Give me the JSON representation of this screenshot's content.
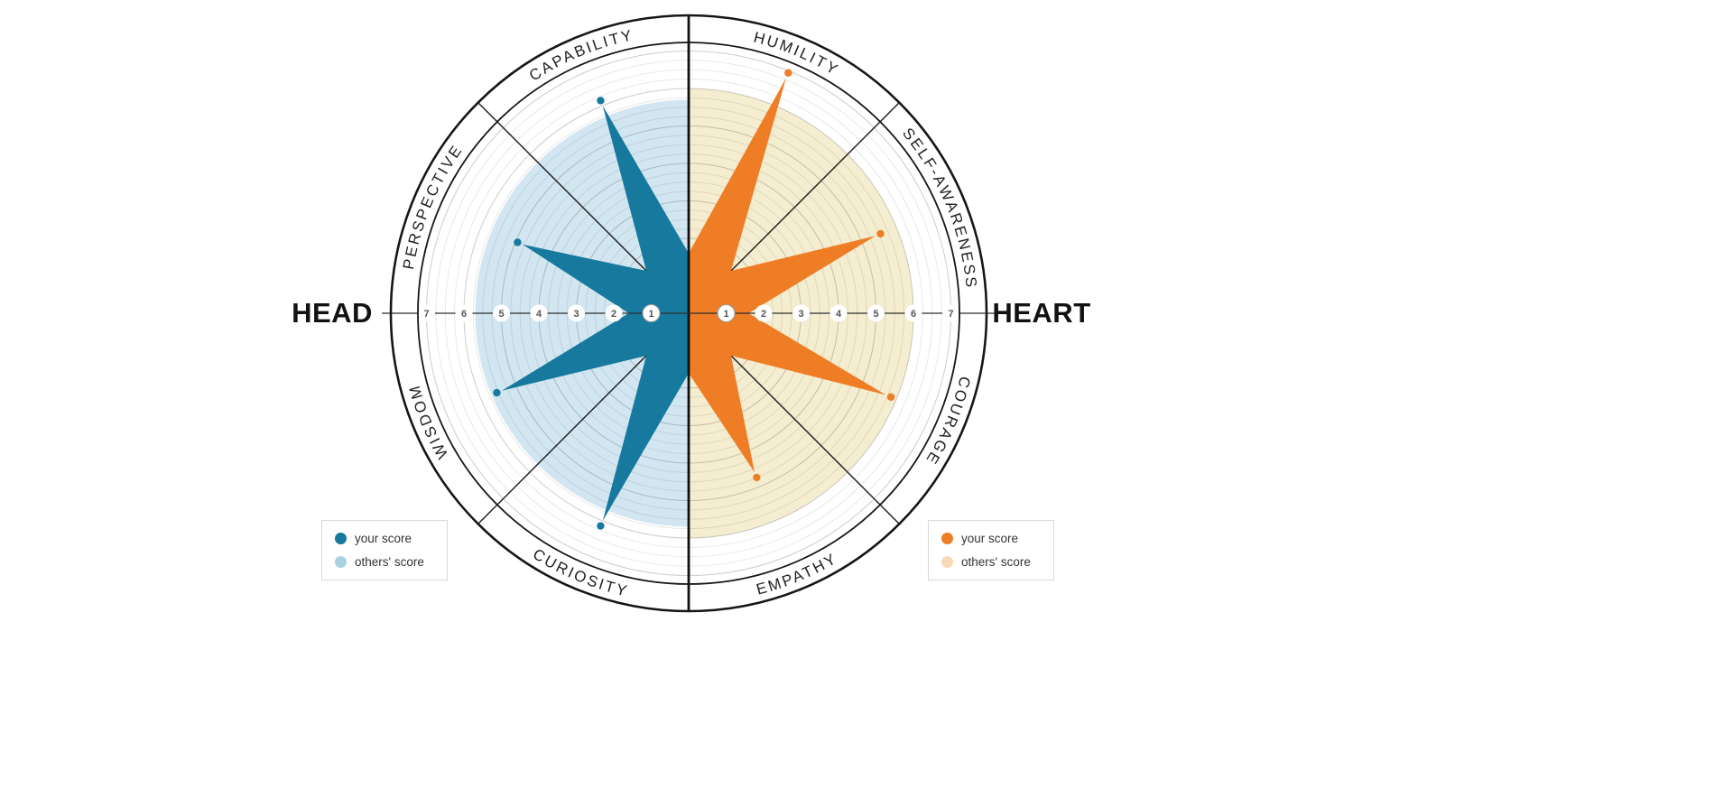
{
  "side_titles": {
    "left": "HEAD",
    "right": "HEART"
  },
  "chart_data": {
    "type": "radar-star",
    "title": "",
    "scale": {
      "min": 0,
      "max": 7,
      "ticks": [
        "1",
        "2",
        "3",
        "4",
        "5",
        "6",
        "7"
      ],
      "valley_radius": 1.6
    },
    "halves": [
      {
        "side": "left",
        "title": "HEAD",
        "your_color": "#17799e",
        "others_area_color": "#d2e6f1",
        "others_dot_color": "#a9d1e4",
        "others_score": 5.7,
        "traits": [
          {
            "label": "CAPABILITY",
            "your_score": 6.0
          },
          {
            "label": "PERSPECTIVE",
            "your_score": 4.8
          },
          {
            "label": "WISDOM",
            "your_score": 5.4
          },
          {
            "label": "CURIOSITY",
            "your_score": 6.0
          }
        ],
        "legend": {
          "your_label": "your score",
          "others_label": "others' score"
        }
      },
      {
        "side": "right",
        "title": "HEART",
        "your_color": "#ef7d26",
        "others_area_color": "#f5edd0",
        "others_dot_color": "#f9d9b5",
        "others_score": 6.0,
        "traits": [
          {
            "label": "HUMILITY",
            "your_score": 6.8
          },
          {
            "label": "SELF-AWARENESS",
            "your_score": 5.4
          },
          {
            "label": "COURAGE",
            "your_score": 5.7
          },
          {
            "label": "EMPATHY",
            "your_score": 4.6
          }
        ],
        "legend": {
          "your_label": "your score",
          "others_label": "others' score"
        }
      }
    ],
    "style": {
      "grid_minor_color": "rgba(0,0,0,0.09)",
      "grid_major_color": "rgba(0,0,0,0.20)",
      "ring_color": "#161616",
      "divider_color": "#1b1b1b",
      "axis_number_color": "#555555",
      "trait_label_color": "#1f1f1f"
    }
  }
}
